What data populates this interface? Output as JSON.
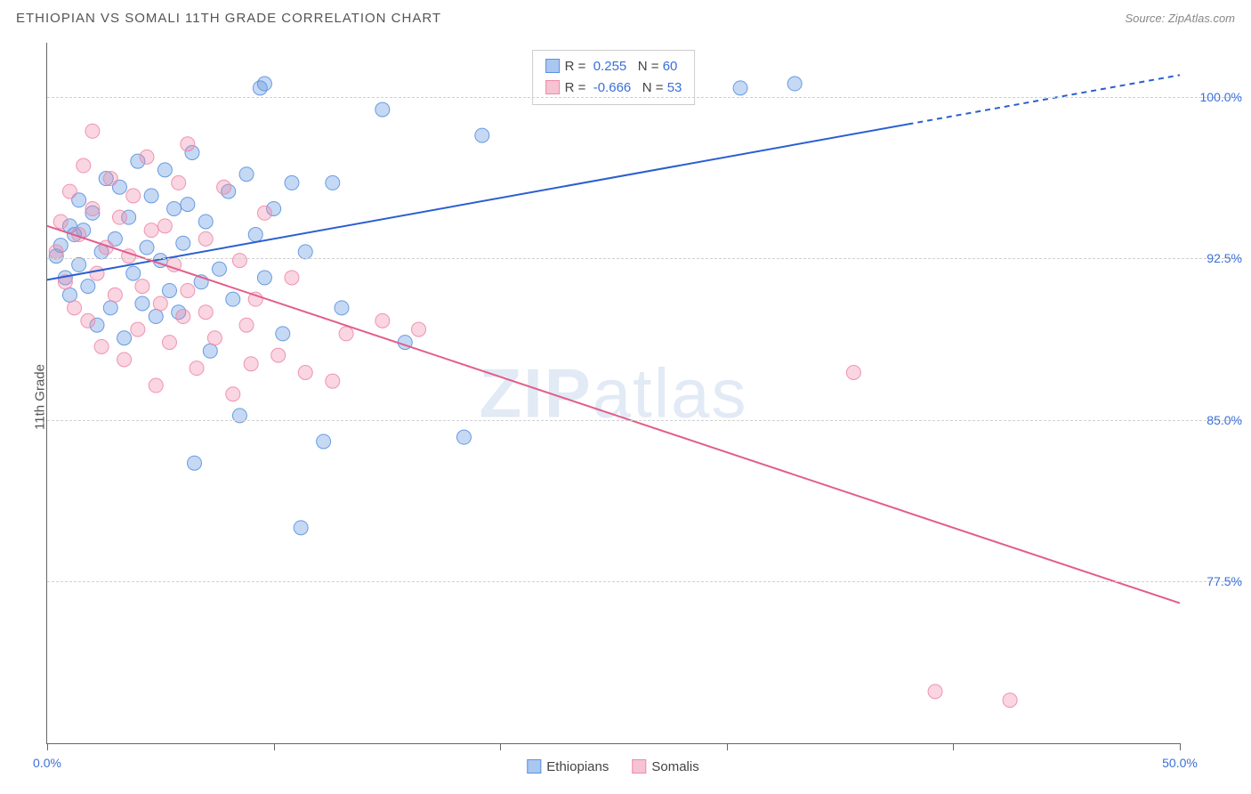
{
  "header": {
    "title": "ETHIOPIAN VS SOMALI 11TH GRADE CORRELATION CHART",
    "source": "Source: ZipAtlas.com"
  },
  "y_axis_label": "11th Grade",
  "watermark": "ZIPatlas",
  "chart": {
    "type": "scatter+regression",
    "background_color": "#ffffff",
    "grid_color": "#d0d0d0",
    "axis_color": "#666666",
    "label_color": "#3a6fd8",
    "text_color": "#555555",
    "title_fontsize": 15,
    "label_fontsize": 15,
    "tick_fontsize": 14,
    "xlim": [
      0,
      50
    ],
    "ylim": [
      70,
      102.5
    ],
    "x_ticks": [
      0,
      10,
      20,
      30,
      40,
      50
    ],
    "x_tick_labels": {
      "0": "0.0%",
      "50": "50.0%"
    },
    "y_grid": [
      77.5,
      85.0,
      92.5,
      100.0
    ],
    "y_tick_labels": {
      "77.5": "77.5%",
      "85.0": "85.0%",
      "92.5": "92.5%",
      "100.0": "100.0%"
    },
    "marker_radius": 8,
    "marker_fill_opacity": 0.35,
    "marker_stroke_opacity": 0.9,
    "line_width": 2,
    "series": [
      {
        "name": "Ethiopians",
        "color": "#5a92e0",
        "line_color": "#2a5fd0",
        "R": 0.255,
        "N": 60,
        "regression": {
          "x0": 0,
          "y0": 91.5,
          "x1": 50,
          "y1": 101.0,
          "dash_after_x": 38
        },
        "points": [
          [
            0.4,
            92.6
          ],
          [
            0.6,
            93.1
          ],
          [
            0.8,
            91.6
          ],
          [
            1.0,
            94.0
          ],
          [
            1.0,
            90.8
          ],
          [
            1.2,
            93.6
          ],
          [
            1.4,
            92.2
          ],
          [
            1.4,
            95.2
          ],
          [
            1.6,
            93.8
          ],
          [
            1.8,
            91.2
          ],
          [
            2.0,
            94.6
          ],
          [
            2.2,
            89.4
          ],
          [
            2.4,
            92.8
          ],
          [
            2.6,
            96.2
          ],
          [
            2.8,
            90.2
          ],
          [
            3.0,
            93.4
          ],
          [
            3.2,
            95.8
          ],
          [
            3.4,
            88.8
          ],
          [
            3.6,
            94.4
          ],
          [
            3.8,
            91.8
          ],
          [
            4.0,
            97.0
          ],
          [
            4.2,
            90.4
          ],
          [
            4.4,
            93.0
          ],
          [
            4.6,
            95.4
          ],
          [
            4.8,
            89.8
          ],
          [
            5.0,
            92.4
          ],
          [
            5.2,
            96.6
          ],
          [
            5.4,
            91.0
          ],
          [
            5.6,
            94.8
          ],
          [
            5.8,
            90.0
          ],
          [
            6.0,
            93.2
          ],
          [
            6.2,
            95.0
          ],
          [
            6.4,
            97.4
          ],
          [
            6.5,
            83.0
          ],
          [
            6.8,
            91.4
          ],
          [
            7.0,
            94.2
          ],
          [
            7.2,
            88.2
          ],
          [
            7.6,
            92.0
          ],
          [
            8.0,
            95.6
          ],
          [
            8.2,
            90.6
          ],
          [
            8.5,
            85.2
          ],
          [
            8.8,
            96.4
          ],
          [
            9.2,
            93.6
          ],
          [
            9.4,
            100.4
          ],
          [
            9.6,
            100.6
          ],
          [
            9.6,
            91.6
          ],
          [
            10.0,
            94.8
          ],
          [
            10.4,
            89.0
          ],
          [
            10.8,
            96.0
          ],
          [
            11.2,
            80.0
          ],
          [
            11.4,
            92.8
          ],
          [
            12.2,
            84.0
          ],
          [
            12.6,
            96.0
          ],
          [
            13.0,
            90.2
          ],
          [
            14.8,
            99.4
          ],
          [
            15.8,
            88.6
          ],
          [
            18.4,
            84.2
          ],
          [
            19.2,
            98.2
          ],
          [
            30.6,
            100.4
          ],
          [
            33.0,
            100.6
          ]
        ]
      },
      {
        "name": "Somalis",
        "color": "#ef8aa8",
        "line_color": "#e35d8a",
        "R": -0.666,
        "N": 53,
        "regression": {
          "x0": 0,
          "y0": 94.0,
          "x1": 50,
          "y1": 76.5,
          "dash_after_x": null
        },
        "points": [
          [
            0.4,
            92.8
          ],
          [
            0.6,
            94.2
          ],
          [
            0.8,
            91.4
          ],
          [
            1.0,
            95.6
          ],
          [
            1.2,
            90.2
          ],
          [
            1.4,
            93.6
          ],
          [
            1.6,
            96.8
          ],
          [
            1.8,
            89.6
          ],
          [
            2.0,
            94.8
          ],
          [
            2.0,
            98.4
          ],
          [
            2.2,
            91.8
          ],
          [
            2.4,
            88.4
          ],
          [
            2.6,
            93.0
          ],
          [
            2.8,
            96.2
          ],
          [
            3.0,
            90.8
          ],
          [
            3.2,
            94.4
          ],
          [
            3.4,
            87.8
          ],
          [
            3.6,
            92.6
          ],
          [
            3.8,
            95.4
          ],
          [
            4.0,
            89.2
          ],
          [
            4.2,
            91.2
          ],
          [
            4.4,
            97.2
          ],
          [
            4.6,
            93.8
          ],
          [
            4.8,
            86.6
          ],
          [
            5.0,
            90.4
          ],
          [
            5.2,
            94.0
          ],
          [
            5.4,
            88.6
          ],
          [
            5.6,
            92.2
          ],
          [
            5.8,
            96.0
          ],
          [
            6.0,
            89.8
          ],
          [
            6.2,
            91.0
          ],
          [
            6.2,
            97.8
          ],
          [
            6.6,
            87.4
          ],
          [
            7.0,
            93.4
          ],
          [
            7.0,
            90.0
          ],
          [
            7.4,
            88.8
          ],
          [
            7.8,
            95.8
          ],
          [
            8.2,
            86.2
          ],
          [
            8.5,
            92.4
          ],
          [
            8.8,
            89.4
          ],
          [
            9.0,
            87.6
          ],
          [
            9.2,
            90.6
          ],
          [
            9.6,
            94.6
          ],
          [
            10.2,
            88.0
          ],
          [
            10.8,
            91.6
          ],
          [
            11.4,
            87.2
          ],
          [
            12.6,
            86.8
          ],
          [
            13.2,
            89.0
          ],
          [
            14.8,
            89.6
          ],
          [
            16.4,
            89.2
          ],
          [
            35.6,
            87.2
          ],
          [
            39.2,
            72.4
          ],
          [
            42.5,
            72.0
          ]
        ]
      }
    ],
    "bottom_legend": [
      {
        "label": "Ethiopians",
        "fill": "#a9c7ef",
        "stroke": "#5a92e0"
      },
      {
        "label": "Somalis",
        "fill": "#f6c3d3",
        "stroke": "#ef8aa8"
      }
    ],
    "top_legend_swatches": [
      {
        "fill": "#a9c7ef",
        "stroke": "#5a92e0"
      },
      {
        "fill": "#f6c3d3",
        "stroke": "#ef8aa8"
      }
    ]
  }
}
